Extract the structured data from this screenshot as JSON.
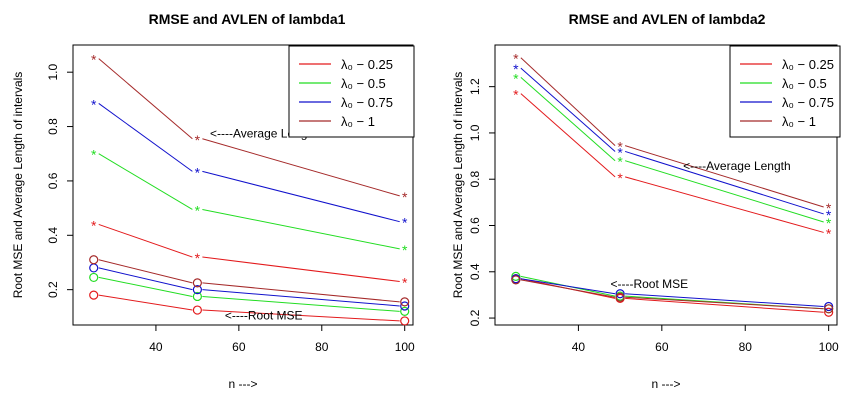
{
  "chart_data": [
    {
      "type": "line",
      "title": "RMSE and AVLEN of lambda1",
      "xlabel": "n --->",
      "ylabel": "Root MSE and Average Length of intervals",
      "x": [
        25,
        50,
        100
      ],
      "xlim": [
        20,
        102
      ],
      "ylim": [
        0.07,
        1.1
      ],
      "xticks": [
        40,
        60,
        80,
        100
      ],
      "yticks": [
        0.2,
        0.4,
        0.6,
        0.8,
        1.0
      ],
      "ytick_labels": [
        "0.2",
        "0.4",
        "0.6",
        "0.8",
        "1.0"
      ],
      "grid": false,
      "legend_position": "top-right",
      "legend": [
        "λ₀ − 0.25",
        "λ₀ − 0.5",
        "λ₀ − 0.75",
        "λ₀ − 1"
      ],
      "colors": [
        "#e31a1c",
        "#22dd22",
        "#1111cc",
        "#a52a2a"
      ],
      "series": [
        {
          "name": "λ₀ − 0.25",
          "color": "#e31a1c",
          "avlen": [
            0.44,
            0.32,
            0.23
          ],
          "rmse": [
            0.18,
            0.125,
            0.085
          ]
        },
        {
          "name": "λ₀ − 0.5",
          "color": "#22dd22",
          "avlen": [
            0.7,
            0.495,
            0.35
          ],
          "rmse": [
            0.245,
            0.175,
            0.12
          ]
        },
        {
          "name": "λ₀ − 0.75",
          "color": "#1111cc",
          "avlen": [
            0.885,
            0.635,
            0.45
          ],
          "rmse": [
            0.28,
            0.2,
            0.14
          ]
        },
        {
          "name": "λ₀ − 1",
          "color": "#a52a2a",
          "avlen": [
            1.05,
            0.755,
            0.545
          ],
          "rmse": [
            0.31,
            0.225,
            0.155
          ]
        }
      ],
      "annotations": [
        {
          "text": "<----Average Length",
          "x": 66,
          "y": 0.76
        },
        {
          "text": "<----Root MSE",
          "x": 66,
          "y": 0.09
        }
      ]
    },
    {
      "type": "line",
      "title": "RMSE and AVLEN of lambda2",
      "xlabel": "n --->",
      "ylabel": "Root MSE and Average Length of intervals",
      "x": [
        25,
        50,
        100
      ],
      "xlim": [
        20,
        102
      ],
      "ylim": [
        0.17,
        1.38
      ],
      "xticks": [
        40,
        60,
        80,
        100
      ],
      "yticks": [
        0.2,
        0.4,
        0.6,
        0.8,
        1.0,
        1.2
      ],
      "ytick_labels": [
        "0.2",
        "0.4",
        "0.6",
        "0.8",
        "1.0",
        "1.2"
      ],
      "grid": false,
      "legend_position": "top-right",
      "legend": [
        "λ₀ − 0.25",
        "λ₀ − 0.5",
        "λ₀ − 0.75",
        "λ₀ − 1"
      ],
      "colors": [
        "#e31a1c",
        "#22dd22",
        "#1111cc",
        "#a52a2a"
      ],
      "series": [
        {
          "name": "λ₀ − 0.25",
          "color": "#e31a1c",
          "avlen": [
            1.17,
            0.81,
            0.57
          ],
          "rmse": [
            0.37,
            0.285,
            0.225
          ]
        },
        {
          "name": "λ₀ − 0.5",
          "color": "#22dd22",
          "avlen": [
            1.24,
            0.88,
            0.615
          ],
          "rmse": [
            0.38,
            0.295,
            0.24
          ]
        },
        {
          "name": "λ₀ − 0.75",
          "color": "#1111cc",
          "avlen": [
            1.28,
            0.92,
            0.65
          ],
          "rmse": [
            0.37,
            0.305,
            0.25
          ]
        },
        {
          "name": "λ₀ − 1",
          "color": "#a52a2a",
          "avlen": [
            1.325,
            0.945,
            0.68
          ],
          "rmse": [
            0.365,
            0.29,
            0.24
          ]
        }
      ],
      "annotations": [
        {
          "text": "<----Average Length",
          "x": 78,
          "y": 0.84
        },
        {
          "text": "<----Root MSE",
          "x": 57,
          "y": 0.33
        }
      ]
    }
  ]
}
